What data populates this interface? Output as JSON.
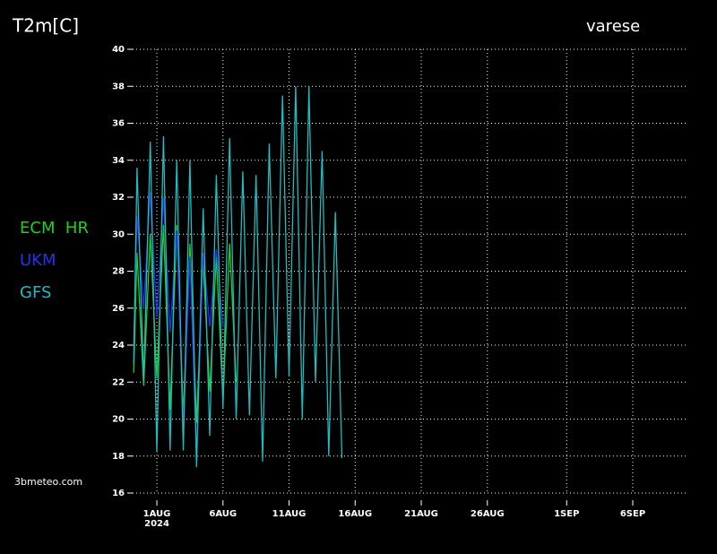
{
  "chart_data": {
    "type": "line",
    "title": "T2m[C]",
    "location": "varese",
    "source": "3bmeteo.com",
    "xlim": [
      "2024-07-30T04:00",
      "2024-09-10T00:00"
    ],
    "xticks": [
      {
        "value": "2024-08-01T00:00",
        "label": "1AUG"
      },
      {
        "value": "2024-08-06T00:00",
        "label": "6AUG"
      },
      {
        "value": "2024-08-11T00:00",
        "label": "11AUG"
      },
      {
        "value": "2024-08-16T00:00",
        "label": "16AUG"
      },
      {
        "value": "2024-08-21T00:00",
        "label": "21AUG"
      },
      {
        "value": "2024-08-26T00:00",
        "label": "26AUG"
      },
      {
        "value": "2024-09-01T00:00",
        "label": "1SEP"
      },
      {
        "value": "2024-09-06T00:00",
        "label": "6SEP"
      }
    ],
    "xtick_year": "2024",
    "ylim": [
      16,
      40
    ],
    "yticks": [
      16,
      18,
      20,
      22,
      24,
      26,
      28,
      30,
      32,
      34,
      36,
      38,
      40
    ],
    "grid": true,
    "series": [
      {
        "name": "ECM  HR",
        "color": "#1ed21e",
        "x": [
          "2024-07-30T06:00",
          "2024-07-30T12:00",
          "2024-07-31T00:00",
          "2024-07-31T12:00",
          "2024-08-01T00:00",
          "2024-08-01T12:00",
          "2024-08-02T00:00",
          "2024-08-02T12:00",
          "2024-08-03T00:00",
          "2024-08-03T12:00",
          "2024-08-04T00:00",
          "2024-08-04T12:00",
          "2024-08-05T00:00",
          "2024-08-05T12:00",
          "2024-08-06T00:00",
          "2024-08-06T12:00",
          "2024-08-07T00:00"
        ],
        "values": [
          22.5,
          29,
          21.8,
          30,
          22.2,
          30.5,
          20.5,
          30.5,
          20.2,
          29.5,
          19.8,
          28.5,
          21.5,
          28.8,
          21,
          29.5,
          22
        ]
      },
      {
        "name": "UKM",
        "color": "#2332f0",
        "x": [
          "2024-07-30T06:00",
          "2024-07-30T12:00",
          "2024-07-31T00:00",
          "2024-07-31T12:00",
          "2024-08-01T00:00",
          "2024-08-01T12:00",
          "2024-08-02T00:00",
          "2024-08-02T12:00",
          "2024-08-03T00:00",
          "2024-08-03T12:00",
          "2024-08-04T00:00",
          "2024-08-04T12:00",
          "2024-08-05T00:00",
          "2024-08-05T12:00",
          "2024-08-06T00:00"
        ],
        "values": [
          24,
          31,
          26,
          32.3,
          25.5,
          32,
          24.7,
          30.2,
          19.5,
          28.8,
          17.8,
          29,
          25,
          29.2,
          25
        ]
      },
      {
        "name": "GFS",
        "color": "#1fbcc0",
        "x": [
          "2024-07-30T06:00",
          "2024-07-30T12:00",
          "2024-07-31T00:00",
          "2024-07-31T12:00",
          "2024-08-01T00:00",
          "2024-08-01T12:00",
          "2024-08-02T00:00",
          "2024-08-02T12:00",
          "2024-08-03T00:00",
          "2024-08-03T12:00",
          "2024-08-04T00:00",
          "2024-08-04T12:00",
          "2024-08-05T00:00",
          "2024-08-05T12:00",
          "2024-08-06T00:00",
          "2024-08-06T12:00",
          "2024-08-07T00:00",
          "2024-08-07T12:00",
          "2024-08-08T00:00",
          "2024-08-08T12:00",
          "2024-08-09T00:00",
          "2024-08-09T12:00",
          "2024-08-10T00:00",
          "2024-08-10T12:00",
          "2024-08-11T00:00",
          "2024-08-11T12:00",
          "2024-08-12T00:00",
          "2024-08-12T12:00",
          "2024-08-13T00:00",
          "2024-08-13T12:00",
          "2024-08-14T00:00",
          "2024-08-14T12:00",
          "2024-08-15T00:00"
        ],
        "values": [
          23,
          33.6,
          22,
          35,
          18.2,
          35.3,
          18.3,
          34,
          18.3,
          34,
          17.4,
          31.4,
          19.1,
          33.2,
          20.6,
          35.2,
          20,
          33.4,
          20.2,
          33.2,
          17.7,
          34.9,
          22.2,
          37.5,
          22.3,
          38,
          20,
          38,
          22,
          34.5,
          18,
          31.2,
          17.9
        ]
      }
    ]
  }
}
